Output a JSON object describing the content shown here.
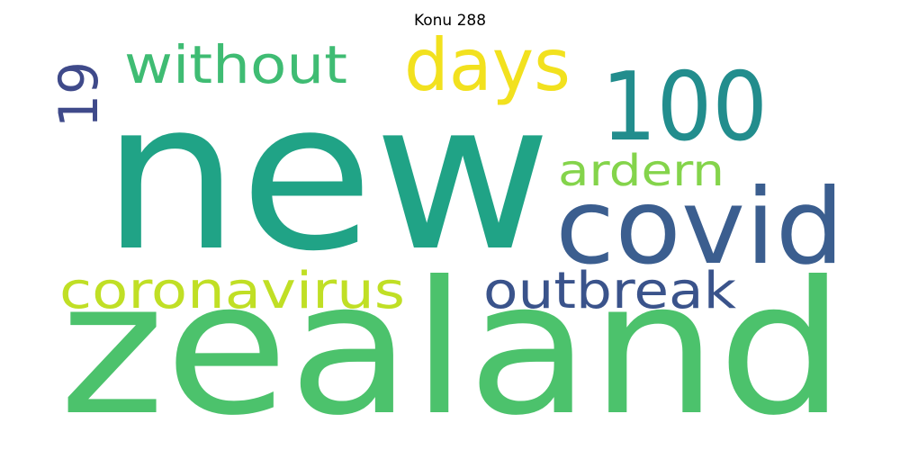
{
  "title": "Konu 288",
  "words": [
    {
      "key": "new",
      "text": "new",
      "color": "#20a386"
    },
    {
      "key": "zealand",
      "text": "zealand",
      "color": "#4cc26c"
    },
    {
      "key": "covid",
      "text": "covid",
      "color": "#3b5e8f"
    },
    {
      "key": "100",
      "text": "100",
      "color": "#228d8d"
    },
    {
      "key": "days",
      "text": "days",
      "color": "#f2e11e"
    },
    {
      "key": "without",
      "text": "without",
      "color": "#3fbc73"
    },
    {
      "key": "19",
      "text": "19",
      "color": "#3f4a8a"
    },
    {
      "key": "ardern",
      "text": "ardern",
      "color": "#84d44b"
    },
    {
      "key": "coronavirus",
      "text": "coronavirus",
      "color": "#c0df25"
    },
    {
      "key": "outbreak",
      "text": "outbreak",
      "color": "#3a538b"
    }
  ]
}
